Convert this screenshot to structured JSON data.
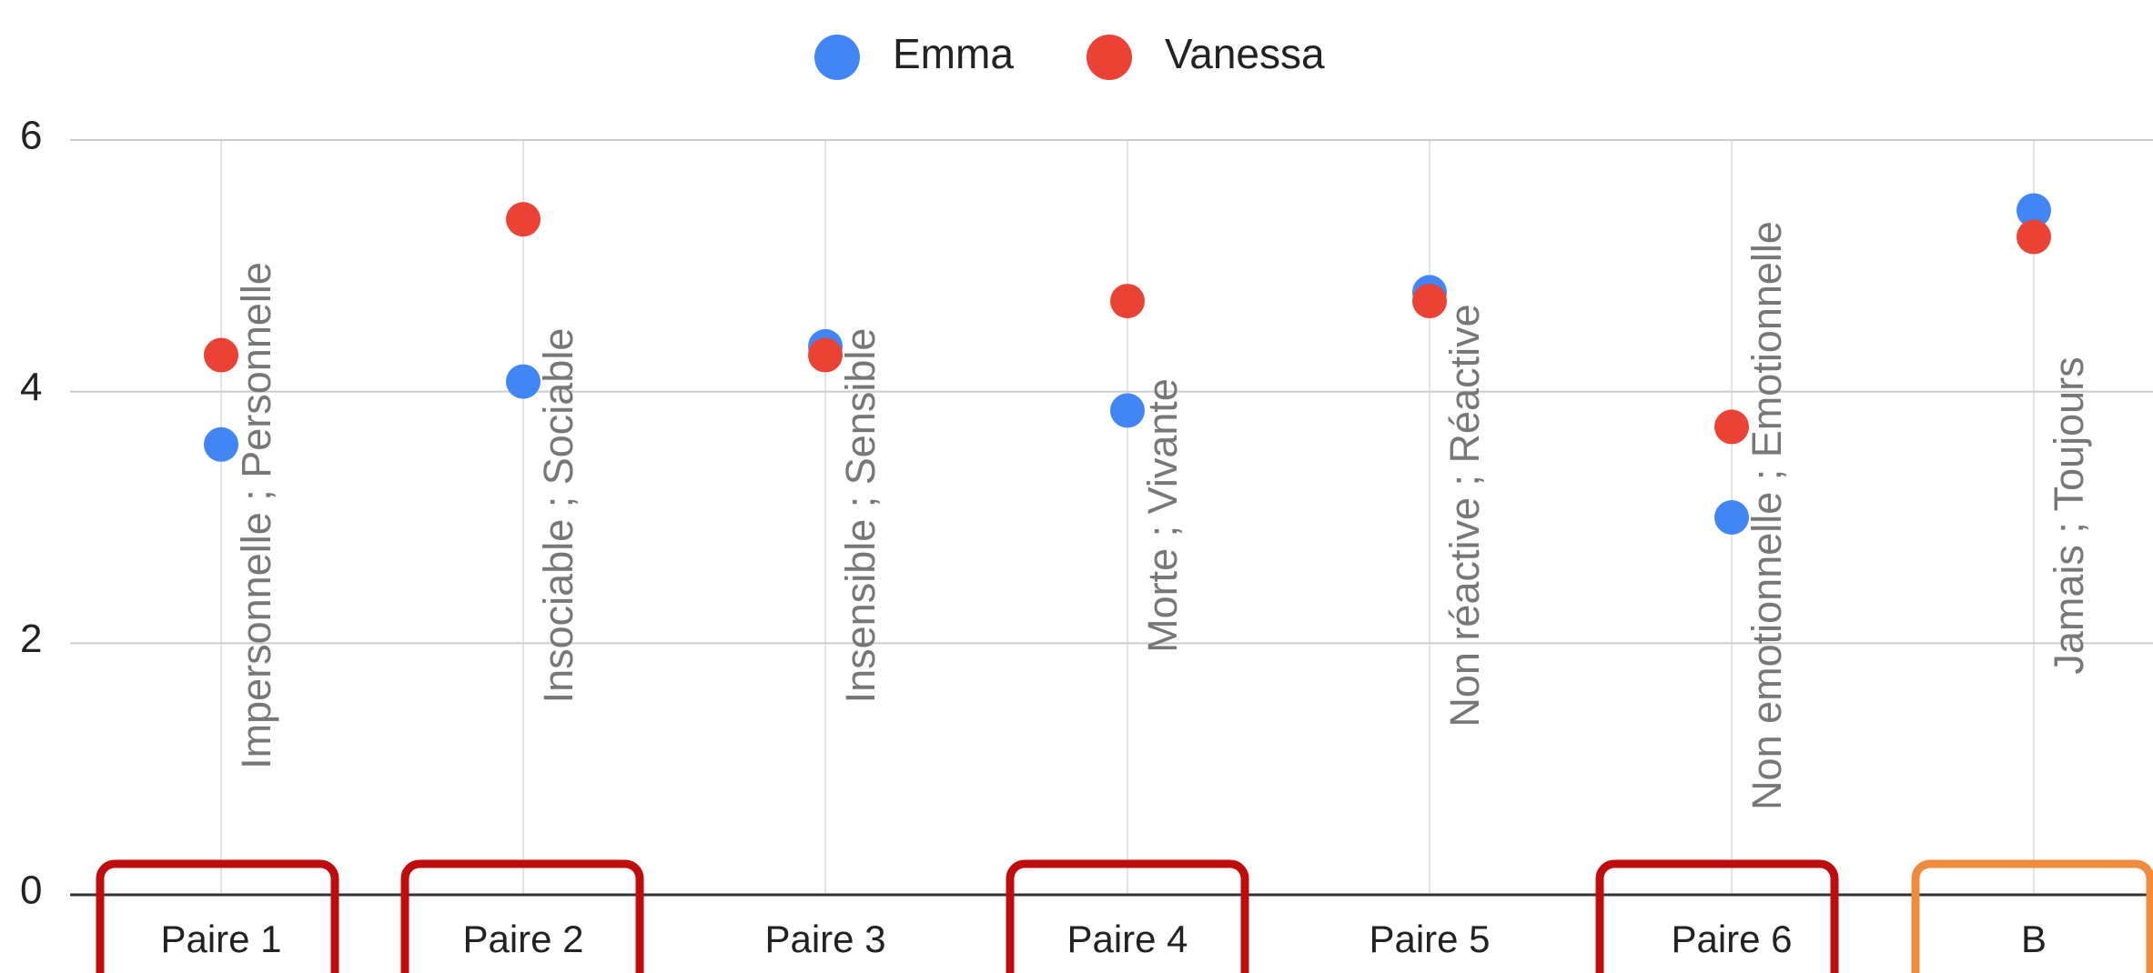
{
  "chart_data": {
    "type": "scatter",
    "categories": [
      "Paire 1",
      "Paire 2",
      "Paire 3",
      "Paire 4",
      "Paire 5",
      "Paire 6",
      "B"
    ],
    "annotations": [
      "Impersonnelle ; Personnelle",
      "Insociable ; Sociable",
      "Insensible ; Sensible",
      "Morte ; Vivante",
      "Non réactive ; Réactive",
      "Non emotionnelle ; Emotionnelle",
      "Jamais ; Toujours"
    ],
    "series": [
      {
        "name": "Emma",
        "color": "#4285f4",
        "values": [
          3.58,
          4.08,
          4.36,
          3.85,
          4.79,
          3.0,
          5.44
        ]
      },
      {
        "name": "Vanessa",
        "color": "#ea4335",
        "values": [
          4.29,
          5.37,
          4.29,
          4.72,
          4.72,
          3.72,
          5.23
        ]
      }
    ],
    "ylim": [
      0,
      6
    ],
    "yticks": [
      0,
      2,
      4,
      6
    ],
    "grid": true,
    "legend": "top"
  }
}
